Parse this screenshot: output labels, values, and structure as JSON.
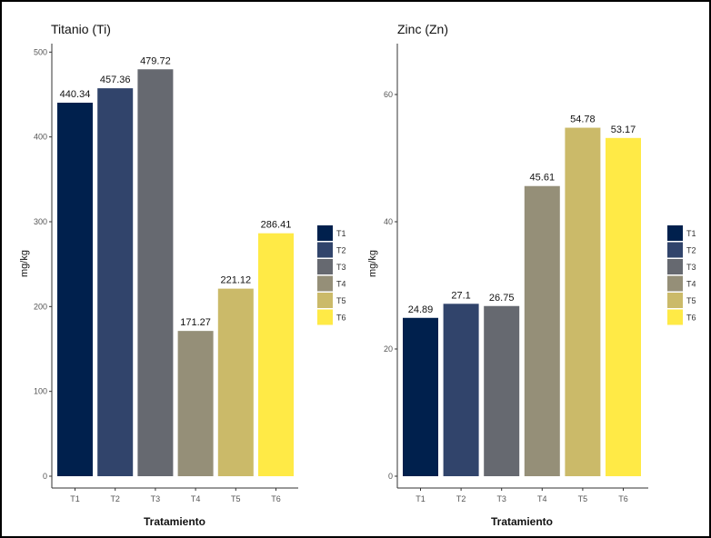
{
  "chart_data": [
    {
      "type": "bar",
      "title": "Titanio (Ti)",
      "xlabel": "Tratamiento",
      "ylabel": "mg/kg",
      "categories": [
        "T1",
        "T2",
        "T3",
        "T4",
        "T5",
        "T6"
      ],
      "values": [
        440.34,
        457.36,
        479.72,
        171.27,
        221.12,
        286.41
      ],
      "value_labels": [
        "440.34",
        "457.36",
        "479.72",
        "171.27",
        "221.12",
        "286.41"
      ],
      "colors": [
        "#00204d",
        "#31446b",
        "#666970",
        "#958f78",
        "#cbba69",
        "#ffea46"
      ],
      "ylim": [
        0,
        510
      ],
      "yticks": [
        0,
        100,
        200,
        300,
        400,
        500
      ],
      "legend": [
        "T1",
        "T2",
        "T3",
        "T4",
        "T5",
        "T6"
      ],
      "legend_position": "right",
      "grid": false
    },
    {
      "type": "bar",
      "title": "Zinc (Zn)",
      "xlabel": "Tratamiento",
      "ylabel": "mg/kg",
      "categories": [
        "T1",
        "T2",
        "T3",
        "T4",
        "T5",
        "T6"
      ],
      "values": [
        24.89,
        27.1,
        26.75,
        45.61,
        54.78,
        53.17
      ],
      "value_labels": [
        "24.89",
        "27.1",
        "26.75",
        "45.61",
        "54.78",
        "53.17"
      ],
      "colors": [
        "#00204d",
        "#31446b",
        "#666970",
        "#958f78",
        "#cbba69",
        "#ffea46"
      ],
      "ylim": [
        0,
        68
      ],
      "yticks": [
        0,
        20,
        40,
        60
      ],
      "legend": [
        "T1",
        "T2",
        "T3",
        "T4",
        "T5",
        "T6"
      ],
      "legend_position": "right",
      "grid": false
    }
  ]
}
